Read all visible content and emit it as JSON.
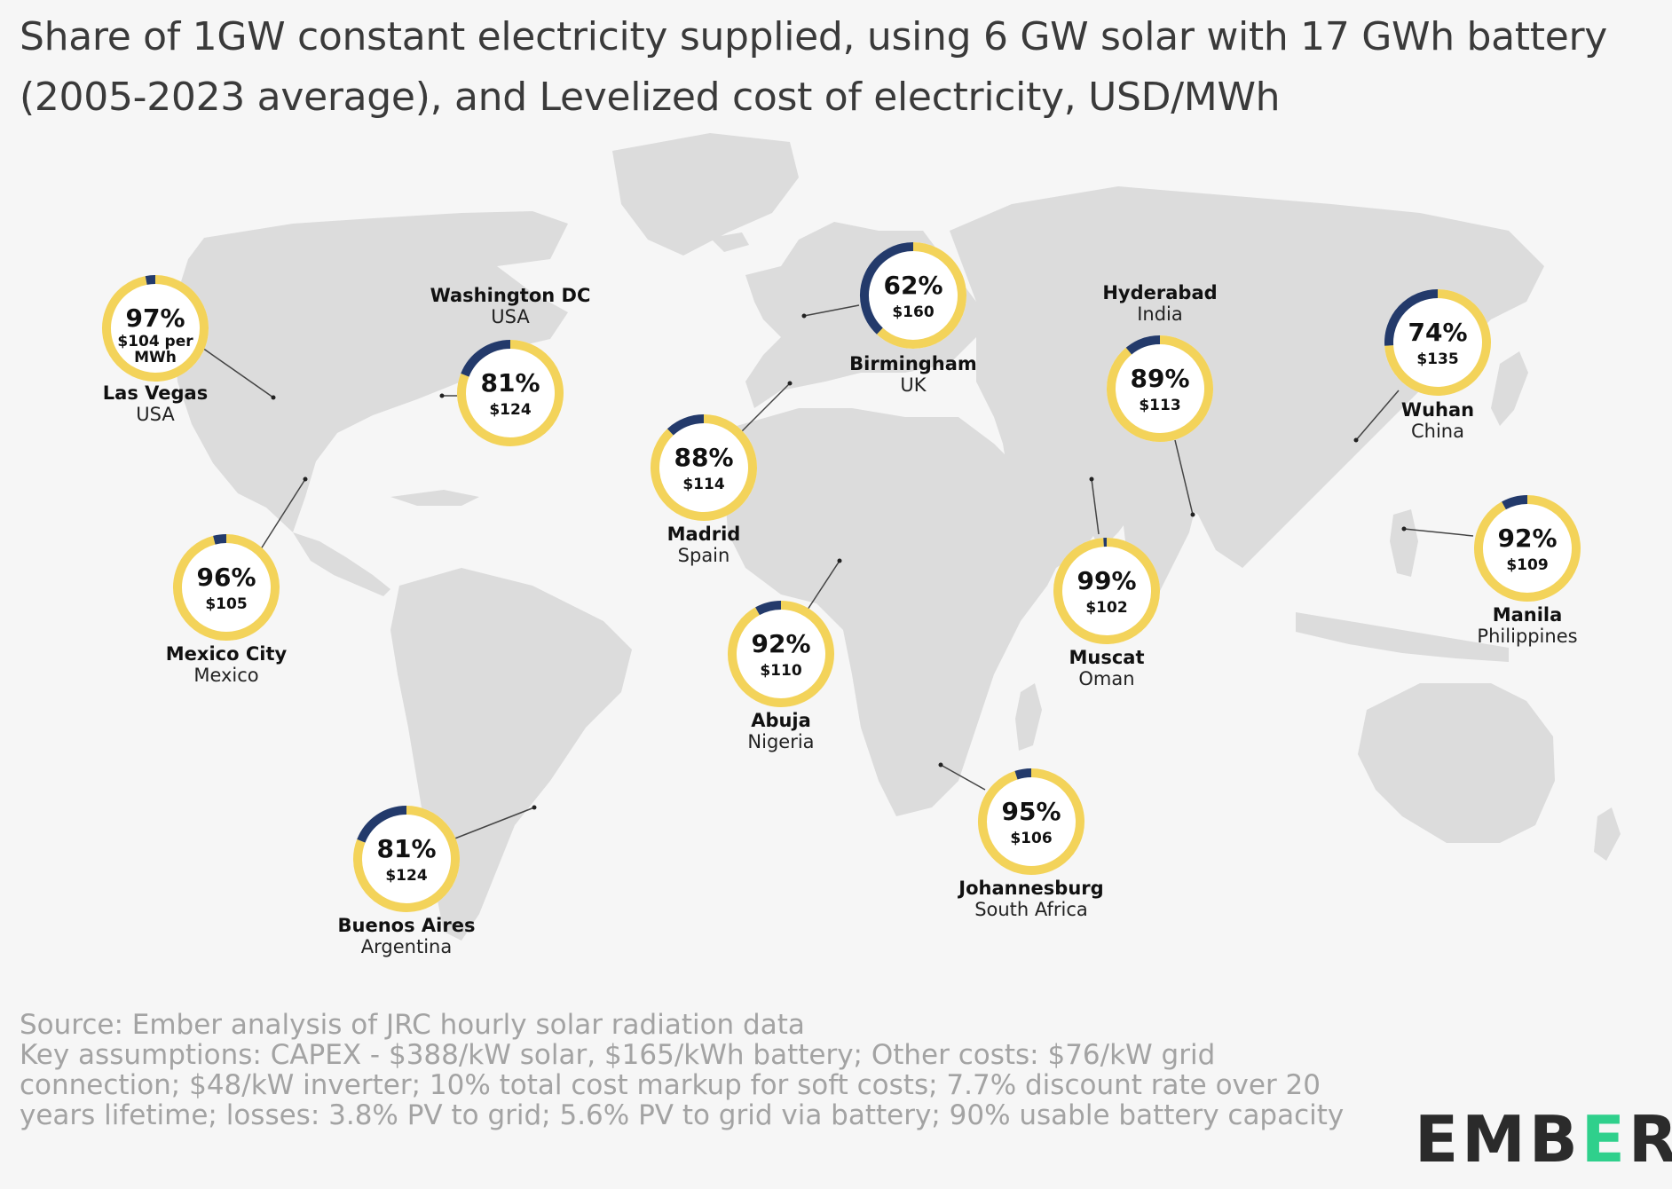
{
  "title": "Share of 1GW constant electricity supplied, using 6 GW solar with 17 GWh battery (2005-2023 average), and Levelized cost of electricity, USD/MWh",
  "footer": {
    "source": "Source: Ember analysis of JRC hourly solar radiation data",
    "assumptions": "Key assumptions: CAPEX - $388/kW solar, $165/kWh battery; Other costs: $76/kW grid connection; $48/kW inverter; 10% total cost markup for soft costs; 7.7% discount rate over 20 years lifetime; losses: 3.8% PV to grid; 5.6% PV to grid via battery; 90% usable battery capacity"
  },
  "logo": {
    "prefix": "EMB",
    "accent": "E",
    "suffix": "R"
  },
  "colors": {
    "supplied": "#f3d35a",
    "unsupplied": "#233a6b",
    "land": "#dcdcdc",
    "background": "#f6f6f6",
    "leader_line": "#444444",
    "logo_accent": "#2fd08c"
  },
  "chart_data": {
    "type": "map-donuts",
    "series": [
      {
        "name": "Share of 1GW constant electricity supplied"
      },
      {
        "name": "Levelized cost of electricity, USD/MWh"
      }
    ],
    "cities": [
      {
        "city": "Las Vegas",
        "country": "USA",
        "share_pct": 97,
        "share_label": "97%",
        "cost_usd_mwh": 104,
        "cost_label": "$104 per MWh"
      },
      {
        "city": "Washington DC",
        "country": "USA",
        "share_pct": 81,
        "share_label": "81%",
        "cost_usd_mwh": 124,
        "cost_label": "$124"
      },
      {
        "city": "Mexico City",
        "country": "Mexico",
        "share_pct": 96,
        "share_label": "96%",
        "cost_usd_mwh": 105,
        "cost_label": "$105"
      },
      {
        "city": "Buenos Aires",
        "country": "Argentina",
        "share_pct": 81,
        "share_label": "81%",
        "cost_usd_mwh": 124,
        "cost_label": "$124"
      },
      {
        "city": "Madrid",
        "country": "Spain",
        "share_pct": 88,
        "share_label": "88%",
        "cost_usd_mwh": 114,
        "cost_label": "$114"
      },
      {
        "city": "Birmingham",
        "country": "UK",
        "share_pct": 62,
        "share_label": "62%",
        "cost_usd_mwh": 160,
        "cost_label": "$160"
      },
      {
        "city": "Abuja",
        "country": "Nigeria",
        "share_pct": 92,
        "share_label": "92%",
        "cost_usd_mwh": 110,
        "cost_label": "$110"
      },
      {
        "city": "Johannesburg",
        "country": "South Africa",
        "share_pct": 95,
        "share_label": "95%",
        "cost_usd_mwh": 106,
        "cost_label": "$106"
      },
      {
        "city": "Hyderabad",
        "country": "India",
        "share_pct": 89,
        "share_label": "89%",
        "cost_usd_mwh": 113,
        "cost_label": "$113"
      },
      {
        "city": "Muscat",
        "country": "Oman",
        "share_pct": 99,
        "share_label": "99%",
        "cost_usd_mwh": 102,
        "cost_label": "$102"
      },
      {
        "city": "Wuhan",
        "country": "China",
        "share_pct": 74,
        "share_label": "74%",
        "cost_usd_mwh": 135,
        "cost_label": "$135"
      },
      {
        "city": "Manila",
        "country": "Philippines",
        "share_pct": 92,
        "share_label": "92%",
        "cost_usd_mwh": 109,
        "cost_label": "$109"
      }
    ]
  }
}
